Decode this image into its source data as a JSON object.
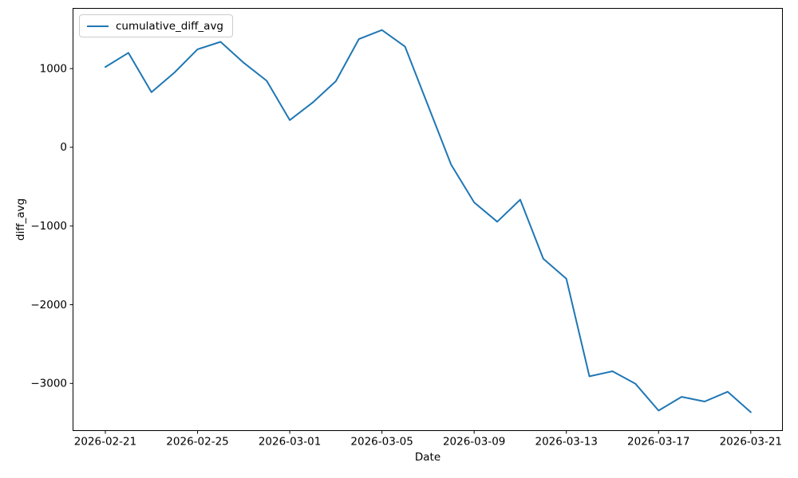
{
  "chart_data": {
    "type": "line",
    "title": "",
    "xlabel": "Date",
    "ylabel": "diff_avg",
    "legend_label": "cumulative_diff_avg",
    "legend_position": "upper left",
    "grid": false,
    "line_color": "#1f77b4",
    "x": [
      "2026-02-21",
      "2026-02-22",
      "2026-02-23",
      "2026-02-24",
      "2026-02-25",
      "2026-02-26",
      "2026-02-27",
      "2026-02-28",
      "2026-03-01",
      "2026-03-02",
      "2026-03-03",
      "2026-03-04",
      "2026-03-05",
      "2026-03-06",
      "2026-03-07",
      "2026-03-08",
      "2026-03-09",
      "2026-03-10",
      "2026-03-11",
      "2026-03-12",
      "2026-03-13",
      "2026-03-14",
      "2026-03-15",
      "2026-03-16",
      "2026-03-17",
      "2026-03-18",
      "2026-03-19",
      "2026-03-20",
      "2026-03-21"
    ],
    "series": [
      {
        "name": "cumulative_diff_avg",
        "values": [
          1020,
          1200,
          700,
          950,
          1245,
          1340,
          1075,
          845,
          345,
          570,
          840,
          1375,
          1490,
          1280,
          530,
          -220,
          -700,
          -945,
          -665,
          -1415,
          -1670,
          -2910,
          -2845,
          -3005,
          -3345,
          -3170,
          -3230,
          -3105,
          -3365
        ]
      }
    ],
    "x_ticks": [
      {
        "label": "2026-02-21",
        "index": 0
      },
      {
        "label": "2026-02-25",
        "index": 4
      },
      {
        "label": "2026-03-01",
        "index": 8
      },
      {
        "label": "2026-03-05",
        "index": 12
      },
      {
        "label": "2026-03-09",
        "index": 16
      },
      {
        "label": "2026-03-13",
        "index": 20
      },
      {
        "label": "2026-03-17",
        "index": 24
      },
      {
        "label": "2026-03-21",
        "index": 28
      }
    ],
    "y_ticks": [
      {
        "label": "1000",
        "value": 1000
      },
      {
        "label": "0",
        "value": 0
      },
      {
        "label": "−1000",
        "value": -1000
      },
      {
        "label": "−2000",
        "value": -2000
      },
      {
        "label": "−3000",
        "value": -3000
      }
    ],
    "ylim": [
      -3600,
      1765
    ]
  }
}
